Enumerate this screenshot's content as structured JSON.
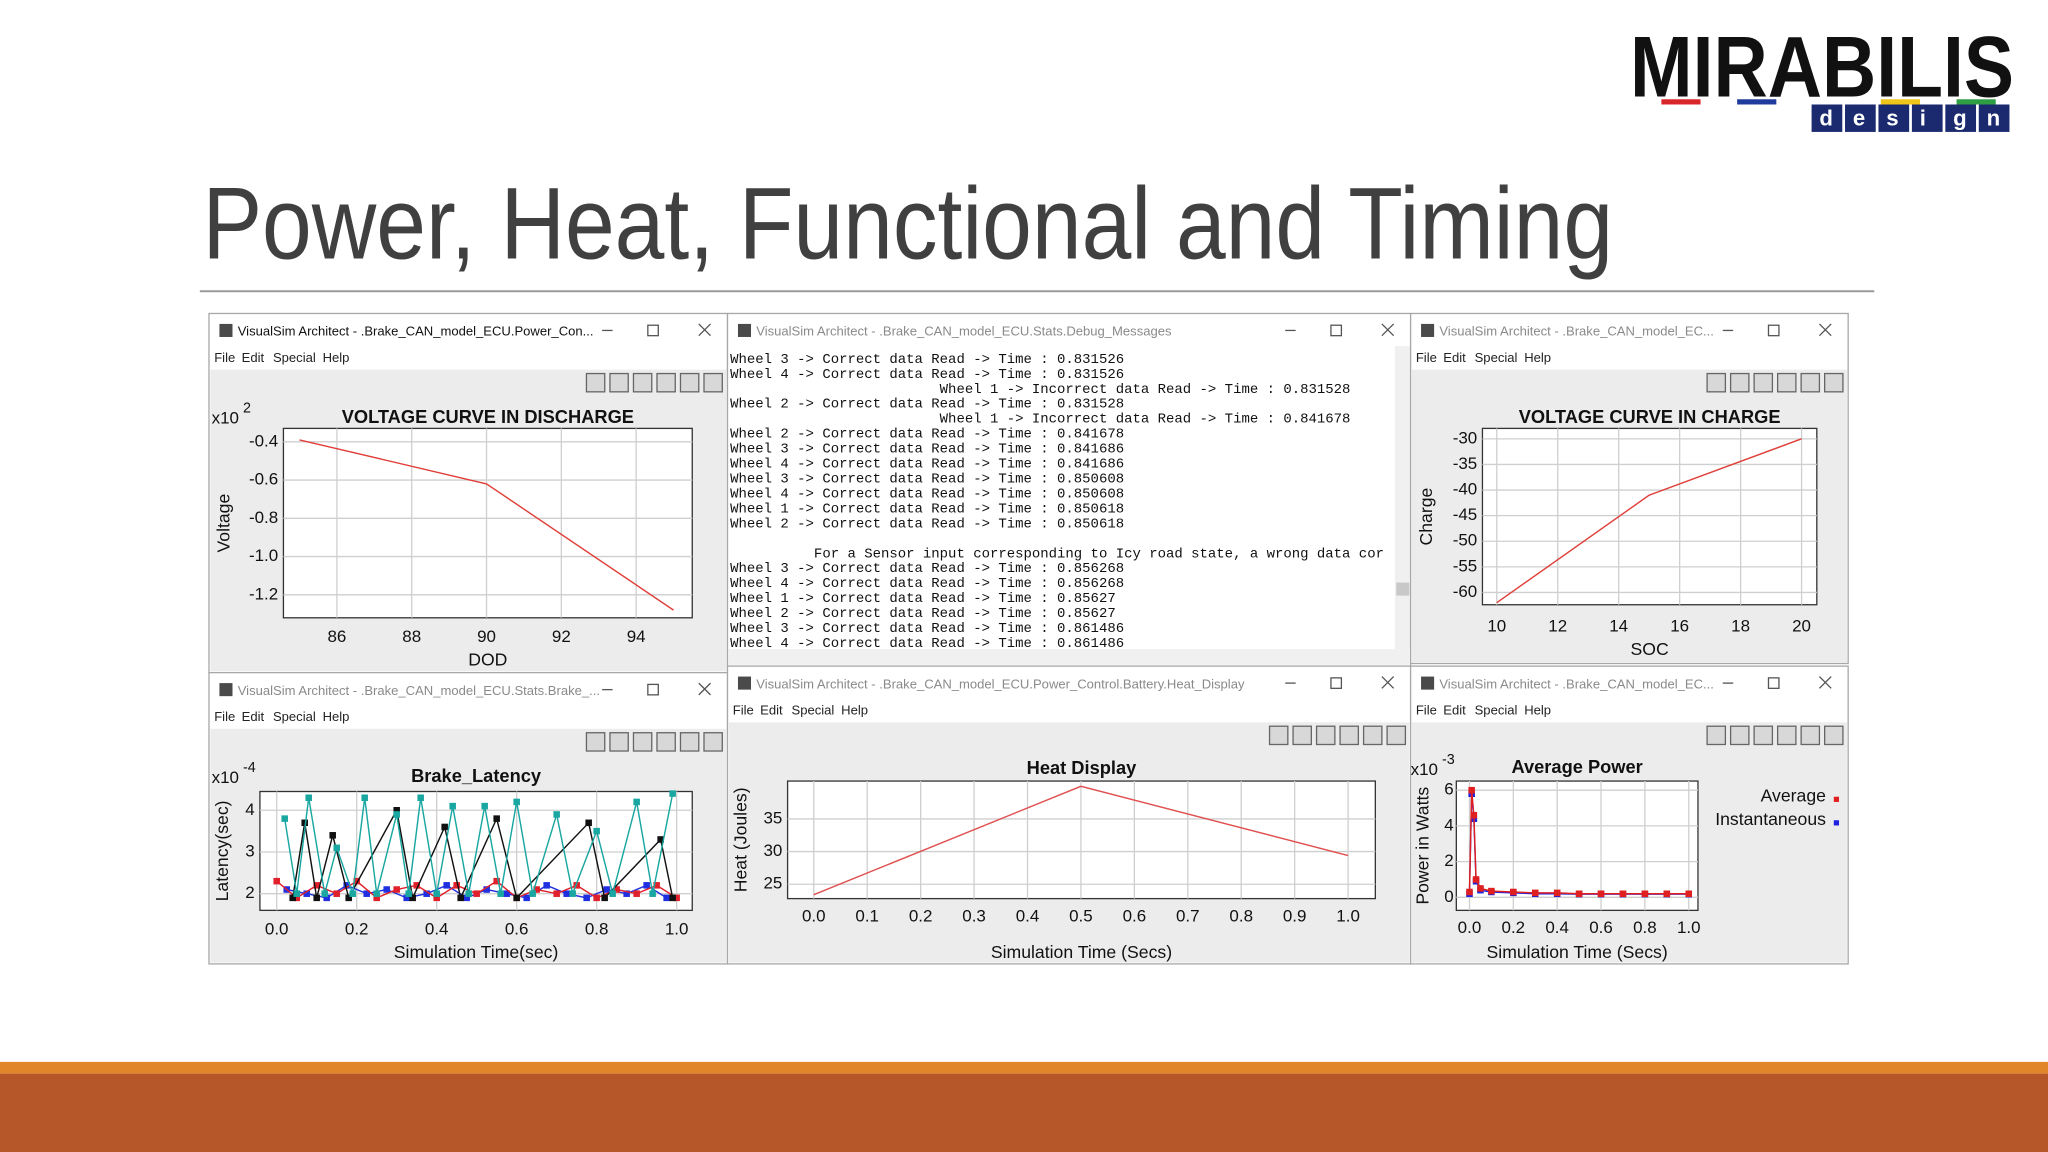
{
  "slide": {
    "title": "Power, Heat, Functional and Timing",
    "logo": {
      "name": "MIRABILIS",
      "tagline": "design"
    }
  },
  "windows": [
    {
      "title": "VisualSim Architect - .Brake_CAN_model_ECU.Power_Con...",
      "menu": [
        "File",
        "Edit",
        "Special",
        "Help"
      ]
    },
    {
      "title": "VisualSim Architect - .Brake_CAN_model_ECU.Stats.Debug_Messages"
    },
    {
      "title": "VisualSim Architect - .Brake_CAN_model_EC...",
      "menu": [
        "File",
        "Edit",
        "Special",
        "Help"
      ]
    },
    {
      "title": "VisualSim Architect - .Brake_CAN_model_ECU.Stats.Brake_...",
      "menu": [
        "File",
        "Edit",
        "Special",
        "Help"
      ]
    },
    {
      "title": "VisualSim Architect - .Brake_CAN_model_ECU.Power_Control.Battery.Heat_Display",
      "menu": [
        "File",
        "Edit",
        "Special",
        "Help"
      ]
    },
    {
      "title": "VisualSim Architect - .Brake_CAN_model_EC...",
      "menu": [
        "File",
        "Edit",
        "Special",
        "Help"
      ]
    }
  ],
  "console": {
    "blocks": [
      [
        "Wheel 3 -> Correct data Read -> Time : 0.831526",
        "Wheel 4 -> Correct data Read -> Time : 0.831526",
        "                         Wheel 1 -> Incorrect data Read -> Time : 0.831528",
        "Wheel 2 -> Correct data Read -> Time : 0.831528",
        "                         Wheel 1 -> Incorrect data Read -> Time : 0.841678",
        "Wheel 2 -> Correct data Read -> Time : 0.841678",
        "Wheel 3 -> Correct data Read -> Time : 0.841686",
        "Wheel 4 -> Correct data Read -> Time : 0.841686",
        "Wheel 3 -> Correct data Read -> Time : 0.850608",
        "Wheel 4 -> Correct data Read -> Time : 0.850608",
        "Wheel 1 -> Correct data Read -> Time : 0.850618",
        "Wheel 2 -> Correct data Read -> Time : 0.850618"
      ],
      [
        "          For a Sensor input corresponding to Icy road state, a wrong data cor",
        "Wheel 3 -> Correct data Read -> Time : 0.856268",
        "Wheel 4 -> Correct data Read -> Time : 0.856268",
        "Wheel 1 -> Correct data Read -> Time : 0.85627",
        "Wheel 2 -> Correct data Read -> Time : 0.85627",
        "Wheel 3 -> Correct data Read -> Time : 0.861486",
        "Wheel 4 -> Correct data Read -> Time : 0.861486"
      ]
    ]
  },
  "chart_data": [
    {
      "type": "line",
      "title": "VOLTAGE CURVE IN DISCHARGE",
      "x_label": "DOD",
      "y_label": "Voltage",
      "y_multiplier": {
        "base": "x10",
        "exponent": "2"
      },
      "x": [
        85,
        90,
        95
      ],
      "series": [
        {
          "color": "#e0403a",
          "values": [
            -0.39,
            -0.62,
            -1.28
          ]
        }
      ],
      "xlim": [
        84.57,
        95.5
      ],
      "ylim": [
        -1.32,
        -0.33
      ],
      "xticks": [
        86,
        88,
        90,
        92,
        94
      ],
      "yticks": [
        -0.4,
        -0.6,
        -0.8,
        {
          "value": -1,
          "label": "-1.0"
        },
        -1.2
      ],
      "grid": true
    },
    {
      "type": "line",
      "title": "VOLTAGE CURVE IN CHARGE",
      "x_label": "SOC",
      "y_label": "Charge",
      "x": [
        10,
        15,
        20
      ],
      "series": [
        {
          "color": "#e0403a",
          "values": [
            -62,
            -41,
            -30
          ]
        }
      ],
      "xlim": [
        9.53,
        20.5
      ],
      "ylim": [
        -62.4,
        -27.96
      ],
      "xticks": [
        10,
        12,
        14,
        16,
        18,
        20
      ],
      "yticks": [
        -30,
        -35,
        -40,
        -45,
        -50,
        -55,
        -60
      ],
      "grid": true
    },
    {
      "type": "line",
      "title": "Brake_Latency",
      "x_label": "Simulation Time(sec)",
      "y_label": "Latency(sec)",
      "y_multiplier": {
        "base": "x10",
        "exponent": "-4"
      },
      "markers": true,
      "series": [
        {
          "color": "#1aa7a1",
          "x": [
            0.02,
            0.05,
            0.08,
            0.12,
            0.15,
            0.19,
            0.22,
            0.25,
            0.3,
            0.33,
            0.36,
            0.4,
            0.44,
            0.48,
            0.52,
            0.56,
            0.6,
            0.64,
            0.7,
            0.74,
            0.8,
            0.84,
            0.9,
            0.94,
            0.99
          ],
          "values": [
            3.8,
            2.0,
            4.3,
            2.0,
            3.1,
            2.0,
            4.3,
            2.0,
            3.9,
            2.0,
            4.3,
            2.0,
            4.1,
            2.0,
            4.1,
            2.0,
            4.2,
            2.0,
            3.9,
            2.0,
            3.5,
            2.0,
            4.2,
            2.0,
            4.4
          ]
        },
        {
          "color": "#111111",
          "x": [
            0.04,
            0.07,
            0.1,
            0.14,
            0.18,
            0.3,
            0.34,
            0.42,
            0.46,
            0.55,
            0.6,
            0.78,
            0.82,
            0.96,
            0.99
          ],
          "values": [
            1.9,
            3.7,
            1.9,
            3.4,
            1.9,
            4.0,
            1.9,
            3.6,
            1.9,
            3.8,
            1.9,
            3.7,
            1.9,
            3.3,
            1.9
          ]
        },
        {
          "color": "#e0202a",
          "x": [
            0,
            0.05,
            0.1,
            0.15,
            0.2,
            0.25,
            0.3,
            0.35,
            0.4,
            0.45,
            0.5,
            0.55,
            0.6,
            0.65,
            0.7,
            0.75,
            0.8,
            0.85,
            0.9,
            0.95,
            1.0
          ],
          "values": [
            2.3,
            1.9,
            2.2,
            2.0,
            2.3,
            1.9,
            2.1,
            2.2,
            1.9,
            2.2,
            2.0,
            2.3,
            1.9,
            2.1,
            2.0,
            2.2,
            1.9,
            2.1,
            2.0,
            2.2,
            1.9
          ]
        },
        {
          "color": "#2030e0",
          "x": [
            0.025,
            0.075,
            0.125,
            0.175,
            0.225,
            0.275,
            0.325,
            0.375,
            0.425,
            0.475,
            0.525,
            0.575,
            0.625,
            0.675,
            0.725,
            0.775,
            0.825,
            0.875,
            0.925,
            0.975
          ],
          "values": [
            2.1,
            2.0,
            1.9,
            2.2,
            2.0,
            2.1,
            1.9,
            2.0,
            2.2,
            1.9,
            2.1,
            2.0,
            1.9,
            2.2,
            2.0,
            1.9,
            2.1,
            2.0,
            2.2,
            1.9
          ]
        }
      ],
      "xlim": [
        -0.042,
        1.039
      ],
      "ylim": [
        1.6,
        4.45
      ],
      "xticks": [
        {
          "value": 0,
          "label": "0.0"
        },
        0.2,
        0.4,
        0.6,
        0.8,
        {
          "value": 1,
          "label": "1.0"
        }
      ],
      "yticks": [
        2,
        3,
        4
      ],
      "grid": true
    },
    {
      "type": "line",
      "title": "Heat Display",
      "x_label": "Simulation Time (Secs)",
      "y_label": "Heat (Joules)",
      "x": [
        0,
        0.5,
        1
      ],
      "series": [
        {
          "color": "#e05050",
          "values": [
            23.4,
            40,
            29.4
          ]
        }
      ],
      "xlim": [
        -0.049,
        1.051
      ],
      "ylim": [
        22.8,
        40.8
      ],
      "xticks": [
        {
          "value": 0,
          "label": "0.0"
        },
        0.1,
        0.2,
        0.3,
        0.4,
        0.5,
        0.6,
        0.7,
        0.8,
        0.9,
        {
          "value": 1,
          "label": "1.0"
        }
      ],
      "yticks": [
        25,
        30,
        35
      ],
      "grid": true
    },
    {
      "type": "line",
      "title": "Average Power",
      "x_label": "Simulation Time (Secs)",
      "y_label": "Power in Watts",
      "y_multiplier": {
        "base": "x10",
        "exponent": "-3"
      },
      "markers": true,
      "legend": "right",
      "x": [
        0,
        0.01,
        0.02,
        0.03,
        0.05,
        0.1,
        0.2,
        0.3,
        0.4,
        0.5,
        0.6,
        0.7,
        0.8,
        0.9,
        1.0
      ],
      "series": [
        {
          "name": "Average",
          "color": "#e02020",
          "values": [
            0.3,
            6.0,
            4.6,
            1.0,
            0.5,
            0.35,
            0.3,
            0.25,
            0.25,
            0.2,
            0.2,
            0.2,
            0.2,
            0.2,
            0.2
          ]
        },
        {
          "name": "Instantaneous",
          "color": "#2020e0",
          "values": [
            0.2,
            5.8,
            4.4,
            0.9,
            0.4,
            0.3,
            0.25,
            0.2,
            0.2,
            0.18,
            0.18,
            0.18,
            0.18,
            0.18,
            0.18
          ]
        }
      ],
      "xlim": [
        -0.06,
        1.042
      ],
      "ylim": [
        -0.73,
        6.51
      ],
      "xticks": [
        {
          "value": 0,
          "label": "0.0"
        },
        0.2,
        0.4,
        0.6,
        0.8,
        {
          "value": 1,
          "label": "1.0"
        }
      ],
      "yticks": [
        0,
        2,
        4,
        6
      ],
      "grid": true
    }
  ]
}
